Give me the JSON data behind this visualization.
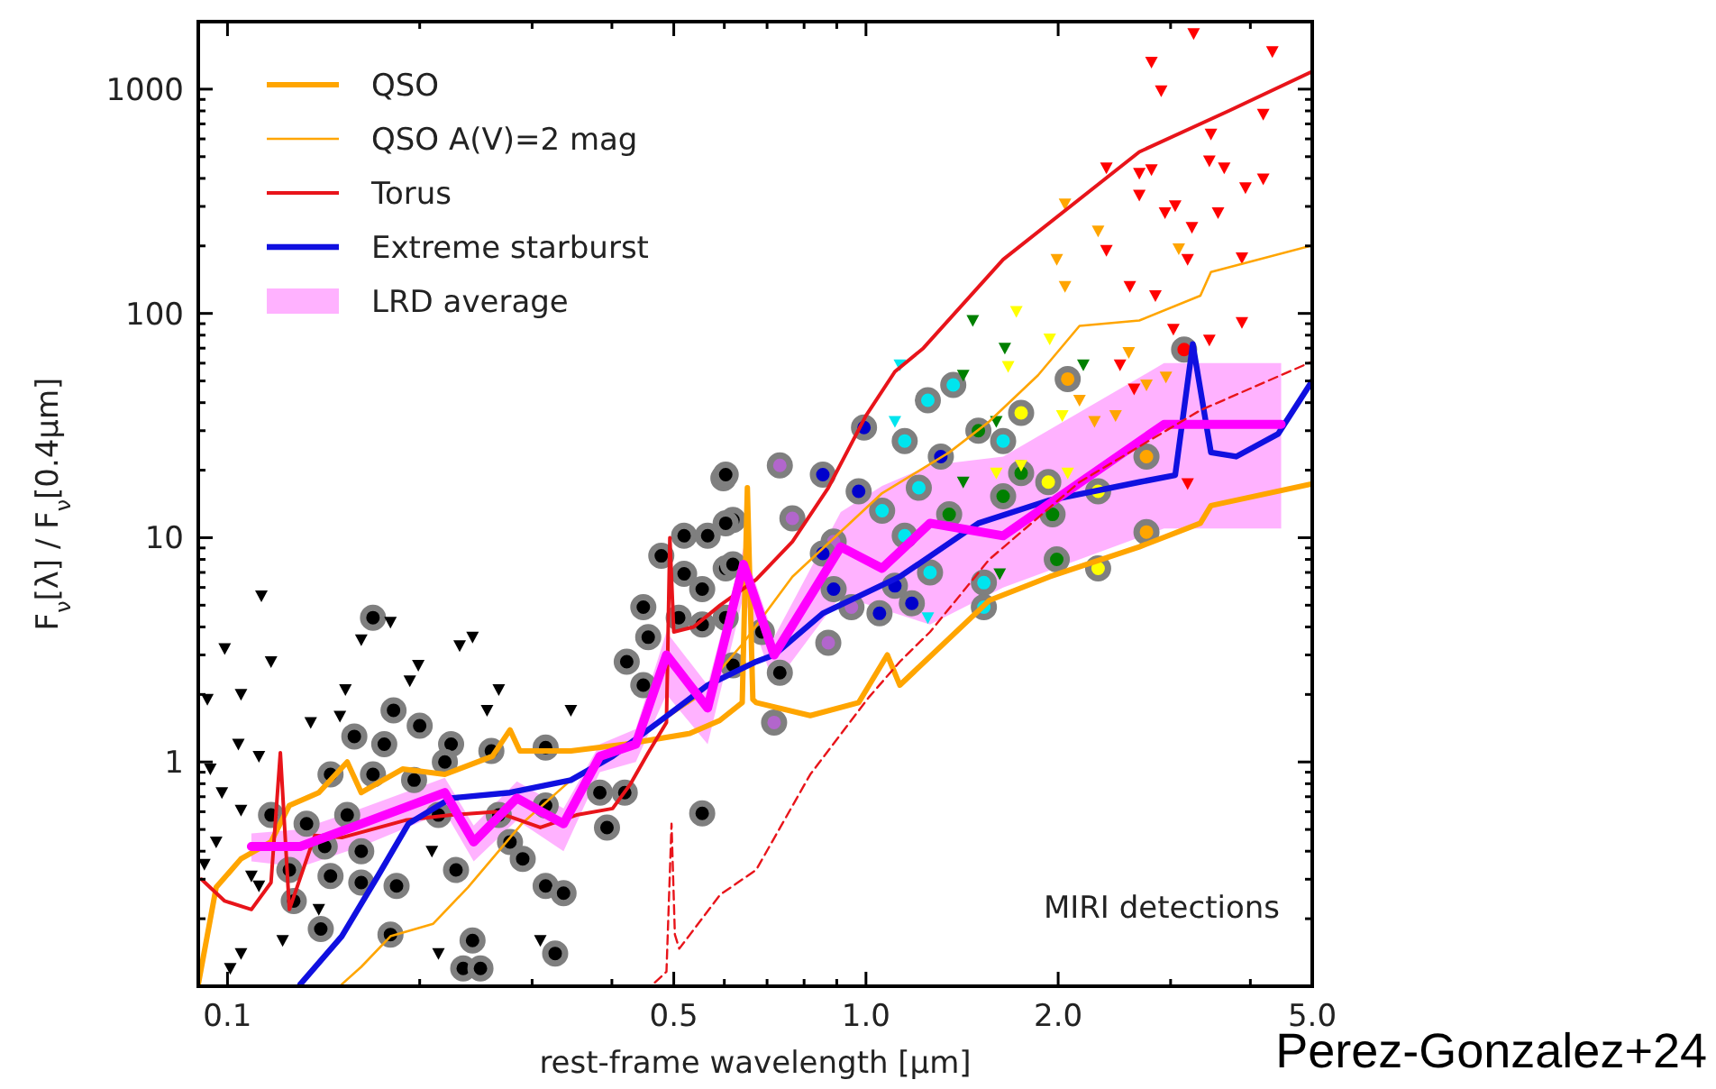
{
  "chart_data": {
    "type": "line",
    "xlabel": "rest-frame wavelength [μm]",
    "ylabel": "F$_{ν}$[λ] / F$_{ν}$[0.4μm]",
    "log": "xy",
    "legend": "top left",
    "xlim": [
      0.09,
      5.0
    ],
    "ylim": [
      0.1,
      2000
    ],
    "xticks": [
      0.1,
      {
        "value": 0.2,
        "label": null
      },
      {
        "value": 0.3,
        "label": null
      },
      {
        "value": 0.4,
        "label": null
      },
      0.5,
      {
        "value": 0.6,
        "label": null
      },
      {
        "value": 0.7,
        "label": null
      },
      {
        "value": 0.8,
        "label": null
      },
      {
        "value": 0.9,
        "label": null
      },
      {
        "value": 1,
        "label": "1.0"
      },
      {
        "value": 2,
        "label": "2.0"
      },
      {
        "value": 3,
        "label": null
      },
      {
        "value": 4,
        "label": null
      },
      {
        "value": 5,
        "label": "5.0"
      }
    ],
    "yticks": [
      {
        "value": 0.2,
        "label": null
      },
      {
        "value": 0.3,
        "label": null
      },
      {
        "value": 0.4,
        "label": null
      },
      {
        "value": 0.5,
        "label": null
      },
      {
        "value": 0.6,
        "label": null
      },
      {
        "value": 0.7,
        "label": null
      },
      {
        "value": 0.8,
        "label": null
      },
      {
        "value": 0.9,
        "label": null
      },
      1,
      {
        "value": 2,
        "label": null
      },
      {
        "value": 3,
        "label": null
      },
      {
        "value": 4,
        "label": null
      },
      {
        "value": 5,
        "label": null
      },
      {
        "value": 6,
        "label": null
      },
      {
        "value": 7,
        "label": null
      },
      {
        "value": 8,
        "label": null
      },
      {
        "value": 9,
        "label": null
      },
      10,
      {
        "value": 20,
        "label": null
      },
      {
        "value": 30,
        "label": null
      },
      {
        "value": 40,
        "label": null
      },
      {
        "value": 50,
        "label": null
      },
      {
        "value": 60,
        "label": null
      },
      {
        "value": 70,
        "label": null
      },
      {
        "value": 80,
        "label": null
      },
      {
        "value": 90,
        "label": null
      },
      100,
      {
        "value": 200,
        "label": null
      },
      {
        "value": 300,
        "label": null
      },
      {
        "value": 400,
        "label": null
      },
      {
        "value": 500,
        "label": null
      },
      {
        "value": 600,
        "label": null
      },
      {
        "value": 700,
        "label": null
      },
      {
        "value": 800,
        "label": null
      },
      {
        "value": 900,
        "label": null
      },
      1000
    ],
    "annotations": [
      "MIRI detections",
      "Perez-Gonzalez+24"
    ],
    "series": [
      {
        "name": "QSO",
        "color": "#ffa500",
        "x": [
          0.09,
          0.096,
          0.105,
          0.117,
          0.125,
          0.139,
          0.154,
          0.162,
          0.188,
          0.219,
          0.26,
          0.277,
          0.287,
          0.345,
          0.42,
          0.53,
          0.59,
          0.64,
          0.652,
          0.665,
          0.673,
          0.818,
          0.974,
          1.08,
          1.13,
          1.56,
          1.94,
          2.68,
          3.34,
          3.47,
          5.0
        ],
        "values": [
          0.102,
          0.276,
          0.37,
          0.44,
          0.64,
          0.73,
          1.0,
          0.73,
          0.93,
          0.88,
          1.06,
          1.39,
          1.12,
          1.12,
          1.2,
          1.34,
          1.53,
          1.84,
          16.7,
          1.9,
          1.84,
          1.61,
          1.84,
          3.0,
          2.2,
          5.25,
          6.7,
          9.1,
          11.6,
          13.9,
          17.4
        ]
      },
      {
        "name": "QSO A(V)=2 mag",
        "color": "#ffa500",
        "x": [
          0.151,
          0.162,
          0.18,
          0.21,
          0.238,
          0.289,
          0.345,
          0.436,
          0.543,
          0.643,
          0.767,
          1.06,
          1.35,
          1.56,
          1.86,
          2.16,
          2.68,
          3.34,
          3.47,
          5.0
        ],
        "values": [
          0.102,
          0.122,
          0.167,
          0.19,
          0.276,
          0.53,
          0.83,
          1.27,
          1.94,
          3.4,
          6.7,
          15.8,
          24,
          33,
          53,
          88,
          93,
          120,
          153,
          201
        ]
      },
      {
        "name": "Torus",
        "color": "#e8141a",
        "x": [
          0.091,
          0.099,
          0.109,
          0.117,
          0.121,
          0.125,
          0.137,
          0.151,
          0.19,
          0.224,
          0.263,
          0.309,
          0.352,
          0.401,
          0.428,
          0.456,
          0.487,
          0.493,
          0.5,
          0.537,
          0.591,
          0.673,
          0.767,
          0.873,
          1.0,
          1.11,
          1.23,
          1.64,
          2.68,
          3.7,
          5.0
        ],
        "values": [
          0.3,
          0.24,
          0.22,
          0.29,
          1.1,
          0.22,
          0.47,
          0.46,
          0.55,
          0.58,
          0.6,
          0.51,
          0.58,
          0.62,
          0.8,
          1.1,
          1.5,
          10,
          3.8,
          4.0,
          5.0,
          6.5,
          9.6,
          16.7,
          35,
          55,
          70,
          174,
          525,
          800,
          1200
        ]
      },
      {
        "name": "Extreme starburst",
        "color": "#1010e0",
        "x": [
          0.13,
          0.151,
          0.172,
          0.192,
          0.224,
          0.277,
          0.345,
          0.401,
          0.477,
          0.565,
          0.673,
          0.718,
          0.856,
          1.13,
          1.5,
          1.94,
          2.68,
          3.05,
          3.25,
          3.47,
          3.8,
          4.42,
          5.0
        ],
        "values": [
          0.102,
          0.167,
          0.31,
          0.53,
          0.69,
          0.73,
          0.83,
          1.06,
          1.53,
          2.2,
          2.8,
          3.0,
          4.6,
          6.7,
          11.6,
          14.7,
          17.7,
          19,
          73,
          24,
          23,
          29,
          50
        ]
      },
      {
        "name": "LRD average",
        "color": "#ff00ff",
        "x": [
          0.109,
          0.13,
          0.162,
          0.219,
          0.243,
          0.284,
          0.336,
          0.383,
          0.436,
          0.487,
          0.565,
          0.643,
          0.718,
          0.913,
          1.06,
          1.26,
          1.64,
          2.93,
          4.47
        ],
        "values": [
          0.42,
          0.42,
          0.53,
          0.73,
          0.44,
          0.69,
          0.53,
          1.06,
          1.2,
          3.0,
          1.74,
          7.6,
          3.0,
          9.1,
          7.3,
          11.6,
          10.2,
          32,
          32
        ],
        "lower": [
          0.36,
          0.34,
          0.42,
          0.6,
          0.36,
          0.55,
          0.4,
          0.9,
          1.0,
          2.0,
          1.2,
          5.5,
          2.2,
          5.5,
          4.8,
          4.1,
          6,
          11,
          11
        ],
        "upper": [
          0.48,
          0.5,
          0.62,
          0.85,
          0.52,
          0.82,
          0.62,
          1.2,
          1.4,
          3.8,
          2.2,
          9,
          3.6,
          13,
          17,
          21,
          23,
          60,
          60
        ]
      },
      {
        "color": "#e8141a",
        "line_style": "dashed",
        "x": [
          0.467,
          0.487,
          0.496,
          0.502,
          0.51,
          0.591,
          0.673,
          0.818,
          1.01,
          1.13,
          1.26,
          1.56,
          2.16,
          3.34,
          5.0
        ],
        "values": [
          0.104,
          0.116,
          0.53,
          0.17,
          0.147,
          0.256,
          0.33,
          0.88,
          1.94,
          2.8,
          3.8,
          8.0,
          17.7,
          37,
          61
        ]
      },
      {
        "type": "scatter",
        "marker": "circle",
        "color": "#000000",
        "x": [
          0.598,
          0.169,
          0.478,
          0.519,
          0.565,
          0.619,
          0.448,
          0.519,
          0.554,
          0.603,
          0.456,
          0.422,
          0.448,
          0.509,
          0.554,
          0.182,
          0.2,
          0.158,
          0.176,
          0.224,
          0.259,
          0.315,
          0.219,
          0.145,
          0.169,
          0.196,
          0.117,
          0.133,
          0.154,
          0.214,
          0.266,
          0.315,
          0.383,
          0.419,
          0.393,
          0.142,
          0.162,
          0.125,
          0.145,
          0.228,
          0.277,
          0.29,
          0.162,
          0.184,
          0.127,
          0.315,
          0.336,
          0.14,
          0.18,
          0.242,
          0.234,
          0.249,
          0.326,
          0.554,
          0.603,
          0.603,
          0.619,
          0.603,
          0.687,
          0.733,
          0.619
        ],
        "values": [
          18.4,
          4.4,
          8.3,
          10.2,
          10.2,
          12.0,
          4.9,
          6.9,
          5.9,
          7.3,
          3.6,
          2.8,
          2.2,
          4.4,
          4.1,
          1.7,
          1.45,
          1.3,
          1.2,
          1.2,
          1.12,
          1.16,
          1.0,
          0.88,
          0.88,
          0.83,
          0.58,
          0.53,
          0.58,
          0.58,
          0.58,
          0.64,
          0.73,
          0.73,
          0.51,
          0.42,
          0.4,
          0.33,
          0.31,
          0.33,
          0.44,
          0.37,
          0.29,
          0.28,
          0.24,
          0.28,
          0.26,
          0.18,
          0.17,
          0.16,
          0.12,
          0.12,
          0.14,
          0.59,
          19.1,
          11.6,
          7.6,
          4.4,
          3.8,
          2.5,
          2.7
        ]
      },
      {
        "type": "scatter",
        "marker": "circle",
        "color": "#b266cc",
        "x": [
          0.733,
          0.767,
          0.873,
          0.718,
          0.949,
          0.89
        ],
        "values": [
          21,
          12.2,
          3.4,
          1.5,
          4.9,
          9.6
        ]
      },
      {
        "type": "scatter",
        "marker": "circle",
        "color": "#0000cc",
        "x": [
          0.993,
          0.856,
          0.974,
          0.856,
          0.89,
          1.05,
          1.18,
          1.31,
          1.11
        ],
        "values": [
          31,
          19.1,
          16.1,
          8.5,
          5.9,
          4.6,
          5.1,
          23,
          6.1
        ]
      },
      {
        "type": "scatter",
        "marker": "circle",
        "color": "#00e5ee",
        "x": [
          1.25,
          1.37,
          1.15,
          1.64,
          1.06,
          1.15,
          1.26,
          1.53,
          1.53,
          1.21
        ],
        "values": [
          41,
          48,
          27,
          27,
          13.2,
          10.2,
          7.0,
          6.3,
          4.9,
          16.7
        ]
      },
      {
        "type": "scatter",
        "marker": "circle",
        "color": "#008000",
        "x": [
          1.5,
          1.64,
          1.75,
          1.96,
          1.99,
          1.35
        ],
        "values": [
          30,
          15.3,
          19.4,
          12.7,
          8.0,
          12.7
        ]
      },
      {
        "type": "scatter",
        "marker": "circle",
        "color": "#ffff00",
        "x": [
          1.75,
          1.93,
          2.31,
          2.31
        ],
        "values": [
          36,
          17.7,
          16.1,
          7.3
        ]
      },
      {
        "type": "scatter",
        "marker": "circle",
        "color": "#ffa500",
        "x": [
          2.07,
          2.75,
          2.75
        ],
        "values": [
          51,
          23,
          10.6
        ]
      },
      {
        "type": "scatter",
        "marker": "circle",
        "color": "#ff0000",
        "x": [
          3.15
        ],
        "values": [
          69
        ]
      },
      {
        "type": "scatter",
        "marker": "triangle",
        "color": "#000000",
        "x": [
          0.113,
          0.099,
          0.117,
          0.105,
          0.093,
          0.153,
          0.162,
          0.18,
          0.231,
          0.242,
          0.199,
          0.193,
          0.266,
          0.255,
          0.345,
          0.135,
          0.15,
          0.104,
          0.112,
          0.094,
          0.098,
          0.105,
          0.096,
          0.092,
          0.109,
          0.112,
          0.122,
          0.139,
          0.105,
          0.101,
          0.214,
          0.309,
          0.209
        ],
        "values": [
          5.5,
          3.2,
          2.8,
          2.0,
          1.9,
          2.1,
          3.5,
          4.2,
          3.3,
          3.6,
          2.7,
          2.3,
          2.1,
          1.7,
          1.7,
          1.5,
          1.6,
          1.2,
          1.06,
          0.93,
          0.73,
          0.61,
          0.44,
          0.35,
          0.31,
          0.28,
          0.16,
          0.22,
          0.14,
          0.12,
          0.14,
          0.16,
          0.4
        ]
      },
      {
        "type": "scatter",
        "marker": "triangle",
        "color": "#ff0000",
        "x": [
          3.26,
          4.33,
          2.8,
          2.9,
          4.19,
          3.47,
          3.45,
          3.64,
          2.38,
          2.68,
          2.8,
          4.19,
          3.93,
          2.68,
          2.94,
          3.05,
          3.56,
          3.24,
          2.38,
          3.19,
          3.88,
          2.59,
          2.84,
          3.88,
          3.45,
          3.03,
          2.5,
          2.63,
          3.19
        ],
        "values": [
          1770,
          1470,
          1320,
          982,
          773,
          631,
          479,
          445,
          445,
          421,
          437,
          398,
          363,
          337,
          281,
          302,
          281,
          242,
          191,
          174,
          177,
          132,
          120,
          91,
          76,
          85,
          59,
          46,
          17.4
        ]
      },
      {
        "type": "scatter",
        "marker": "triangle",
        "color": "#ffa500",
        "x": [
          2.05,
          2.31,
          1.99,
          2.05,
          3.09,
          2.58,
          2.16,
          2.28,
          2.46,
          2.75,
          2.95
        ],
        "values": [
          308,
          233,
          174,
          132,
          194,
          67,
          41,
          33,
          35,
          48,
          52
        ]
      },
      {
        "type": "scatter",
        "marker": "triangle",
        "color": "#ffff00",
        "x": [
          1.72,
          1.94,
          1.67,
          1.6,
          1.75,
          2.07,
          2.03
        ],
        "values": [
          102,
          77,
          58,
          19.4,
          21,
          19.4,
          35
        ]
      },
      {
        "type": "scatter",
        "marker": "triangle",
        "color": "#008000",
        "x": [
          1.47,
          1.65,
          2.19,
          1.42,
          1.6,
          1.42,
          1.62
        ],
        "values": [
          93,
          70,
          59,
          53,
          33,
          17.7,
          6.9
        ]
      },
      {
        "type": "scatter",
        "marker": "triangle",
        "color": "#00e5ee",
        "x": [
          1.13,
          1.11,
          1.25
        ],
        "values": [
          59,
          33,
          4.4
        ]
      }
    ]
  }
}
